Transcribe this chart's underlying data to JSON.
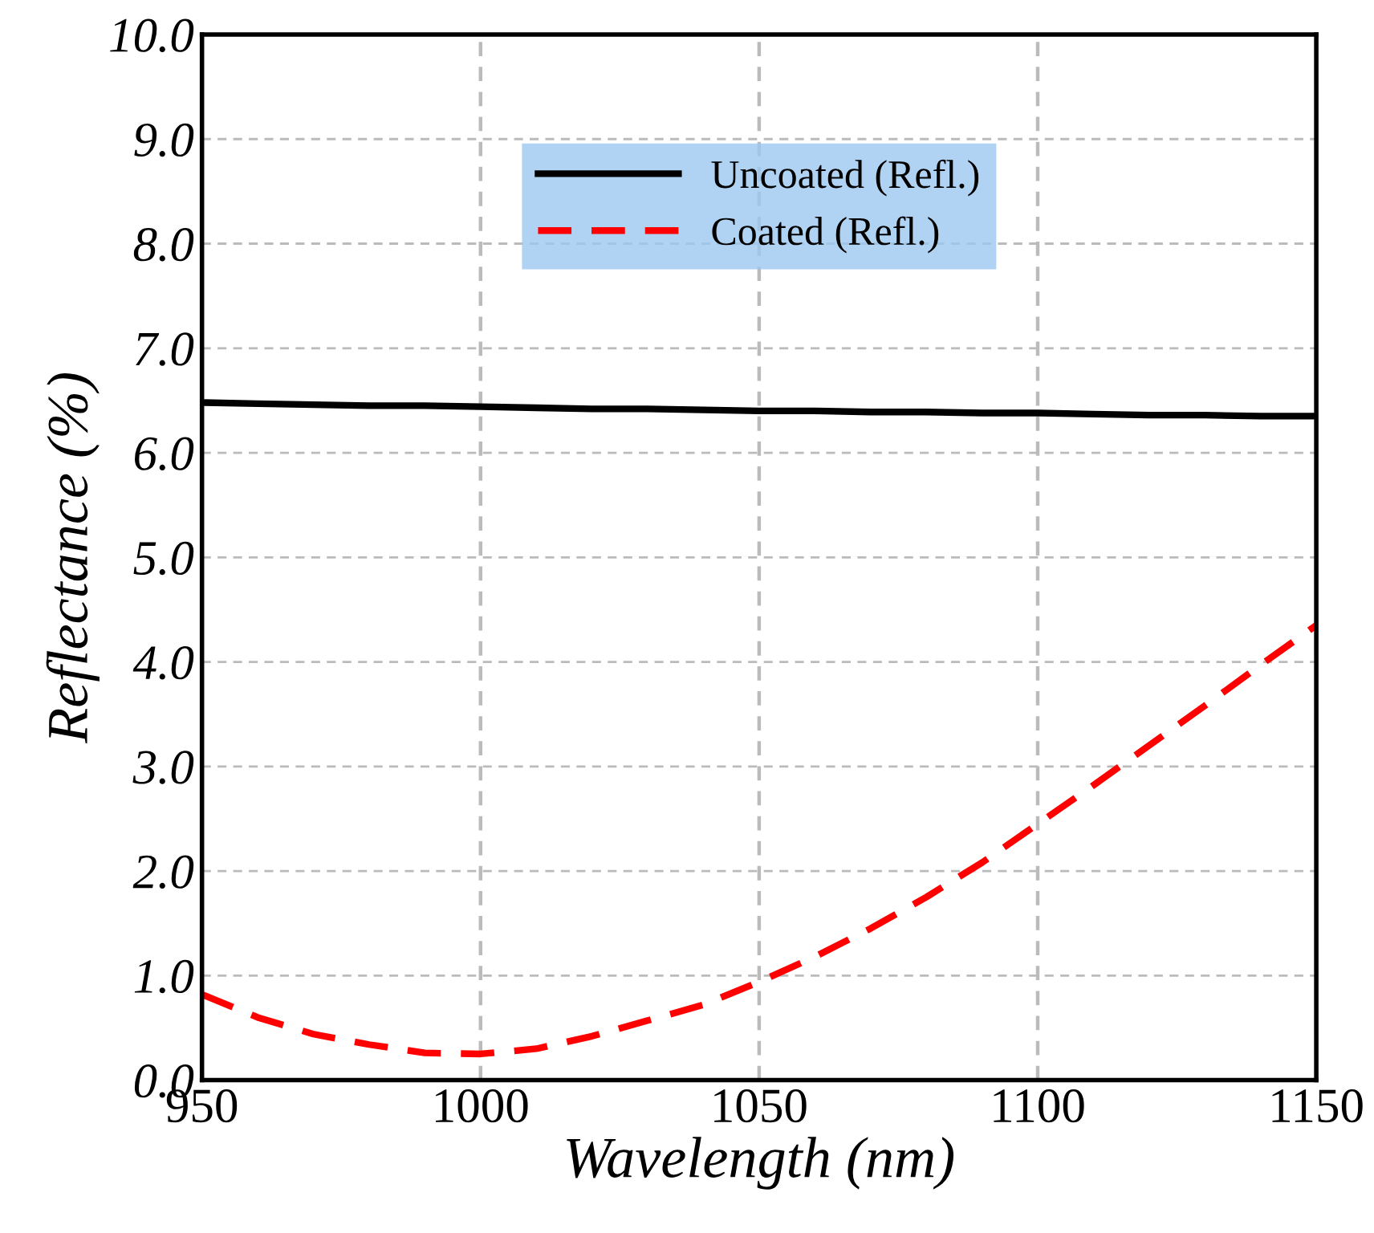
{
  "chart_data": {
    "type": "line",
    "xlabel": "Wavelength (nm)",
    "ylabel": "Reflectance (%)",
    "xlim": [
      950,
      1150
    ],
    "xticks": [
      950,
      1000,
      1050,
      1100,
      1150
    ],
    "ylim": [
      0,
      10
    ],
    "yticks": [
      {
        "value": 0,
        "label": "0.0"
      },
      {
        "value": 1,
        "label": "1.0"
      },
      {
        "value": 2,
        "label": "2.0"
      },
      {
        "value": 3,
        "label": "3.0"
      },
      {
        "value": 4,
        "label": "4.0"
      },
      {
        "value": 5,
        "label": "5.0"
      },
      {
        "value": 6,
        "label": "6.0"
      },
      {
        "value": 7,
        "label": "7.0"
      },
      {
        "value": 8,
        "label": "8.0"
      },
      {
        "value": 9,
        "label": "9.0"
      },
      {
        "value": 10,
        "label": "10.0"
      }
    ],
    "grid": true,
    "legend": "top",
    "marker": "none",
    "x": [
      950,
      960,
      970,
      980,
      990,
      1000,
      1010,
      1020,
      1030,
      1040,
      1050,
      1060,
      1070,
      1080,
      1090,
      1100,
      1110,
      1120,
      1130,
      1140,
      1150
    ],
    "series": [
      {
        "name": "Uncoated (Refl.)",
        "color": "#000000",
        "line_style": "solid",
        "values": [
          6.48,
          6.47,
          6.46,
          6.45,
          6.45,
          6.44,
          6.43,
          6.42,
          6.42,
          6.41,
          6.4,
          6.4,
          6.39,
          6.39,
          6.38,
          6.38,
          6.37,
          6.36,
          6.36,
          6.35,
          6.35
        ]
      },
      {
        "name": "Coated (Refl.)",
        "color": "#ff0000",
        "line_style": "dashed",
        "values": [
          0.82,
          0.6,
          0.44,
          0.34,
          0.26,
          0.25,
          0.3,
          0.42,
          0.57,
          0.72,
          0.94,
          1.18,
          1.45,
          1.75,
          2.08,
          2.45,
          2.82,
          3.2,
          3.58,
          3.97,
          4.35
        ]
      }
    ]
  }
}
